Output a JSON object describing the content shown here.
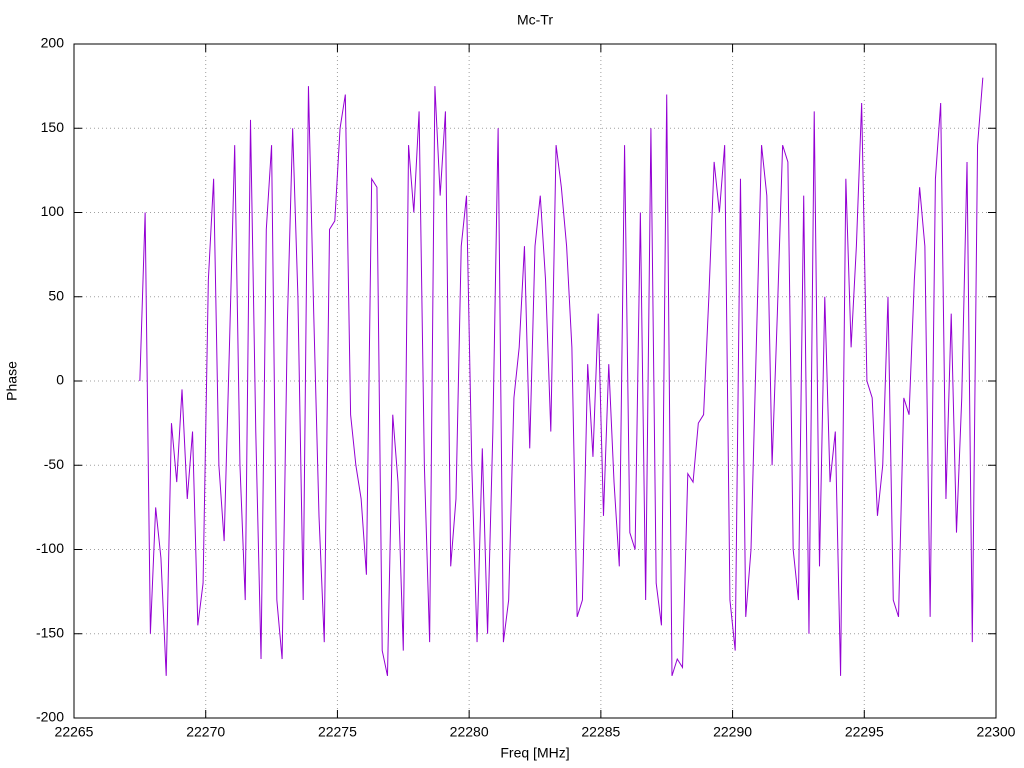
{
  "chart_data": {
    "type": "line",
    "title": "Mc-Tr",
    "x_label": "Freq [MHz]",
    "y_label": "Phase",
    "xlim": [
      22265,
      22300
    ],
    "xticks": [
      22265,
      22270,
      22275,
      22280,
      22285,
      22290,
      22295,
      22300
    ],
    "ylim": [
      -200,
      200
    ],
    "yticks": [
      -200,
      -150,
      -100,
      -50,
      0,
      50,
      100,
      150,
      200
    ],
    "grid": true,
    "series": [
      {
        "color": "#9400d3",
        "x": [
          22267.5,
          22267.7,
          22267.9,
          22268.1,
          22268.3,
          22268.5,
          22268.7,
          22268.9,
          22269.1,
          22269.3,
          22269.5,
          22269.7,
          22269.9,
          22270.1,
          22270.3,
          22270.5,
          22270.7,
          22270.9,
          22271.1,
          22271.3,
          22271.5,
          22271.7,
          22271.9,
          22272.1,
          22272.3,
          22272.5,
          22272.7,
          22272.9,
          22273.1,
          22273.3,
          22273.5,
          22273.7,
          22273.9,
          22274.1,
          22274.3,
          22274.5,
          22274.7,
          22274.9,
          22275.1,
          22275.3,
          22275.5,
          22275.7,
          22275.9,
          22276.1,
          22276.3,
          22276.5,
          22276.7,
          22276.9,
          22277.1,
          22277.3,
          22277.5,
          22277.7,
          22277.9,
          22278.1,
          22278.3,
          22278.5,
          22278.7,
          22278.9,
          22279.1,
          22279.3,
          22279.5,
          22279.7,
          22279.9,
          22280.1,
          22280.3,
          22280.5,
          22280.7,
          22280.9,
          22281.1,
          22281.3,
          22281.5,
          22281.7,
          22281.9,
          22282.1,
          22282.3,
          22282.5,
          22282.7,
          22282.9,
          22283.1,
          22283.3,
          22283.5,
          22283.7,
          22283.9,
          22284.1,
          22284.3,
          22284.5,
          22284.7,
          22284.9,
          22285.1,
          22285.3,
          22285.5,
          22285.7,
          22285.9,
          22286.1,
          22286.3,
          22286.5,
          22286.7,
          22286.9,
          22287.1,
          22287.3,
          22287.5,
          22287.7,
          22287.9,
          22288.1,
          22288.3,
          22288.5,
          22288.7,
          22288.9,
          22289.1,
          22289.3,
          22289.5,
          22289.7,
          22289.9,
          22290.1,
          22290.3,
          22290.5,
          22290.7,
          22290.9,
          22291.1,
          22291.3,
          22291.5,
          22291.7,
          22291.9,
          22292.1,
          22292.3,
          22292.5,
          22292.7,
          22292.9,
          22293.1,
          22293.3,
          22293.5,
          22293.7,
          22293.9,
          22294.1,
          22294.3,
          22294.5,
          22294.7,
          22294.9,
          22295.1,
          22295.3,
          22295.5,
          22295.7,
          22295.9,
          22296.1,
          22296.3,
          22296.5,
          22296.7,
          22296.9,
          22297.1,
          22297.3,
          22297.5,
          22297.7,
          22297.9,
          22298.1,
          22298.3,
          22298.5,
          22298.7,
          22298.9,
          22299.1,
          22299.3,
          22299.5
        ],
        "values": [
          0,
          100,
          -150,
          -75,
          -105,
          -175,
          -25,
          -60,
          -5,
          -70,
          -30,
          -145,
          -120,
          60,
          120,
          -50,
          -95,
          20,
          140,
          -50,
          -130,
          155,
          -30,
          -165,
          90,
          140,
          -130,
          -165,
          35,
          150,
          50,
          -130,
          175,
          40,
          -80,
          -155,
          90,
          95,
          150,
          170,
          -20,
          -50,
          -70,
          -115,
          120,
          115,
          -160,
          -175,
          -20,
          -60,
          -160,
          140,
          100,
          160,
          -50,
          -155,
          175,
          110,
          160,
          -110,
          -70,
          80,
          110,
          -50,
          -155,
          -40,
          -150,
          -30,
          150,
          -155,
          -130,
          -10,
          20,
          80,
          -40,
          80,
          110,
          60,
          -30,
          140,
          115,
          80,
          20,
          -140,
          -130,
          10,
          -45,
          40,
          -80,
          10,
          -60,
          -110,
          140,
          -90,
          -100,
          100,
          -130,
          150,
          -120,
          -145,
          170,
          -175,
          -165,
          -170,
          -55,
          -60,
          -25,
          -20,
          50,
          130,
          100,
          140,
          -130,
          -160,
          120,
          -140,
          -100,
          20,
          140,
          110,
          -50,
          40,
          140,
          130,
          -100,
          -130,
          110,
          -150,
          160,
          -110,
          50,
          -60,
          -30,
          -175,
          120,
          20,
          80,
          165,
          0,
          -10,
          -80,
          -50,
          50,
          -130,
          -140,
          -10,
          -20,
          60,
          115,
          80,
          -140,
          120,
          165,
          -70,
          40,
          -90,
          -10,
          130,
          -155,
          140,
          180
        ]
      }
    ]
  }
}
